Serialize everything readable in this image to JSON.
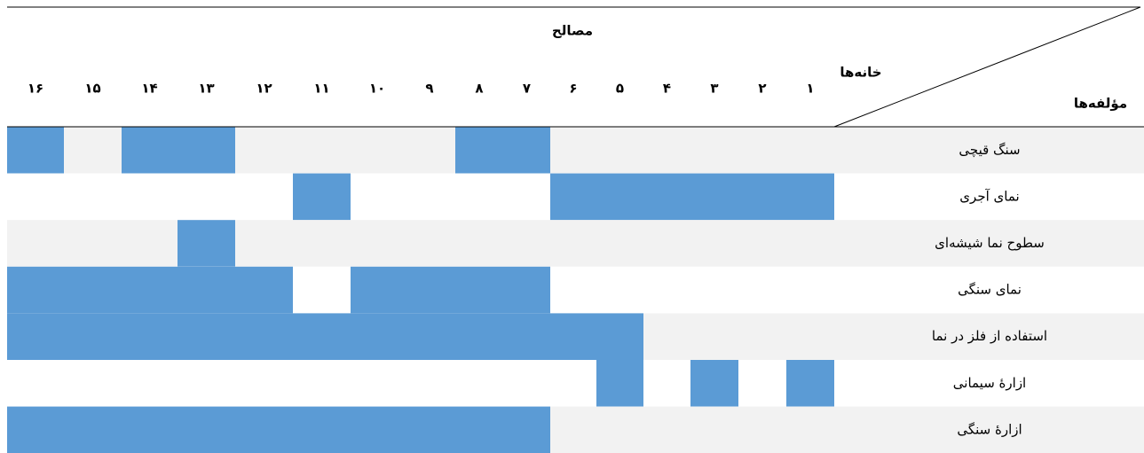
{
  "table": {
    "group_header": "مصالح",
    "column_axis_label": "خانه‌ها",
    "row_axis_label": "مؤلفه‌ها",
    "columns": [
      "۱",
      "۲",
      "۳",
      "۴",
      "۵",
      "۶",
      "۷",
      "۸",
      "۹",
      "۱۰",
      "۱۱",
      "۱۲",
      "۱۳",
      "۱۴",
      "۱۵",
      "۱۶"
    ],
    "fill_color": "#5b9bd5",
    "rows": [
      {
        "label": "سنگ قیچی",
        "filled": [
          false,
          false,
          false,
          false,
          false,
          false,
          true,
          true,
          false,
          false,
          false,
          false,
          true,
          true,
          false,
          true
        ]
      },
      {
        "label": "نمای آجری",
        "filled": [
          true,
          true,
          true,
          true,
          true,
          true,
          false,
          false,
          false,
          false,
          true,
          false,
          false,
          false,
          false,
          false
        ]
      },
      {
        "label": "سطوح نما شیشه‌ای",
        "filled": [
          false,
          false,
          false,
          false,
          false,
          false,
          false,
          false,
          false,
          false,
          false,
          false,
          true,
          false,
          false,
          false
        ]
      },
      {
        "label": "نمای سنگی",
        "filled": [
          false,
          false,
          false,
          false,
          false,
          false,
          true,
          true,
          true,
          true,
          false,
          true,
          true,
          true,
          true,
          true
        ]
      },
      {
        "label": "استفاده از فلز در نما",
        "filled": [
          false,
          false,
          false,
          false,
          true,
          true,
          true,
          true,
          true,
          true,
          true,
          true,
          true,
          true,
          true,
          true
        ]
      },
      {
        "label": "ازارهٔ سیمانی",
        "filled": [
          true,
          false,
          true,
          false,
          true,
          false,
          false,
          false,
          false,
          false,
          false,
          false,
          false,
          false,
          false,
          false
        ]
      },
      {
        "label": "ازارهٔ سنگی",
        "filled": [
          false,
          false,
          false,
          false,
          false,
          false,
          true,
          true,
          true,
          true,
          true,
          true,
          true,
          true,
          true,
          true
        ]
      }
    ]
  }
}
